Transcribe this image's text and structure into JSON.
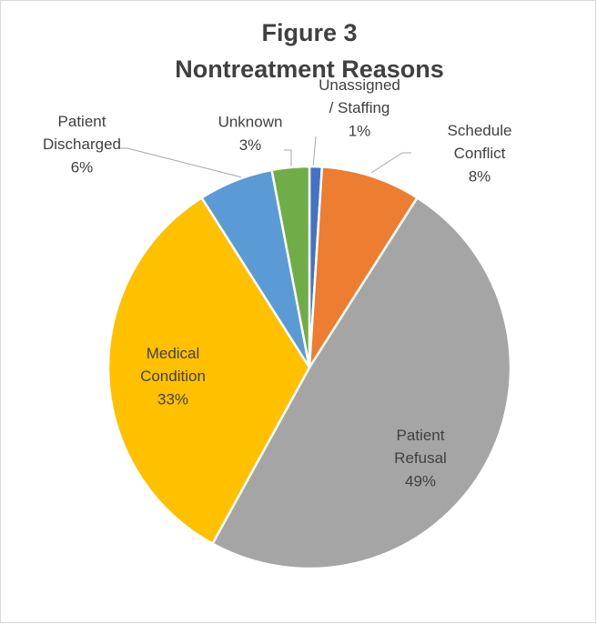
{
  "chart_data": {
    "type": "pie",
    "title": "Figure 3",
    "subtitle": "Nontreatment Reasons",
    "categories": [
      "Unassigned / Staffing",
      "Schedule Conflict",
      "Patient Refusal",
      "Medical Condition",
      "Patient Discharged",
      "Unknown"
    ],
    "values": [
      1,
      8,
      49,
      33,
      6,
      3
    ],
    "value_labels": [
      "1%",
      "8%",
      "49%",
      "33%",
      "6%",
      "3%"
    ],
    "colors": [
      "#4472c4",
      "#ed7d31",
      "#a5a5a5",
      "#ffc000",
      "#5b9bd5",
      "#70ad47"
    ]
  }
}
